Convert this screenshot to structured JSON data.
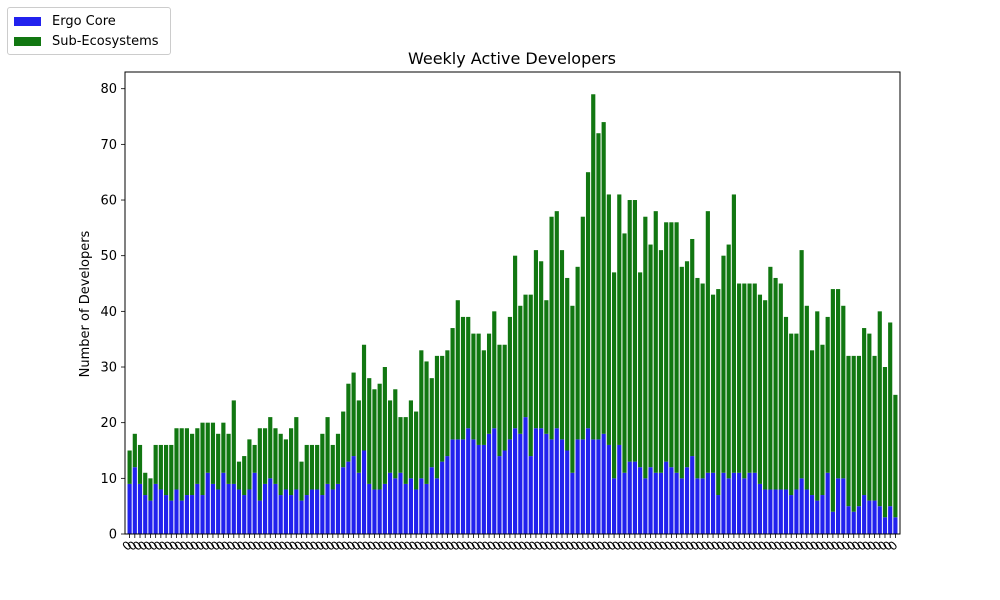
{
  "chart_data": {
    "type": "bar",
    "stacked": true,
    "title": "Weekly Active Developers",
    "xlabel": "",
    "ylabel": "Number of Developers",
    "ylim": [
      0,
      83
    ],
    "yticks": [
      0,
      10,
      20,
      30,
      40,
      50,
      60,
      70,
      80
    ],
    "xtick_label": "0",
    "legend_position": "top-left",
    "grid": false,
    "series": [
      {
        "name": "Ergo Core",
        "color": "#2222ee",
        "values": [
          9,
          12,
          9,
          7,
          6,
          9,
          8,
          7,
          6,
          8,
          6,
          7,
          7,
          9,
          7,
          11,
          9,
          8,
          11,
          9,
          9,
          8,
          7,
          8,
          11,
          6,
          9,
          10,
          9,
          7,
          8,
          7,
          8,
          6,
          7,
          8,
          8,
          7,
          9,
          8,
          9,
          12,
          13,
          14,
          11,
          15,
          9,
          8,
          8,
          9,
          11,
          10,
          11,
          9,
          10,
          8,
          10,
          9,
          12,
          10,
          13,
          14,
          17,
          17,
          17,
          19,
          17,
          16,
          16,
          18,
          19,
          14,
          15,
          17,
          19,
          18,
          21,
          14,
          19,
          19,
          18,
          17,
          19,
          17,
          15,
          11,
          17,
          17,
          19,
          17,
          17,
          18,
          16,
          10,
          16,
          11,
          13,
          13,
          12,
          10,
          12,
          11,
          11,
          13,
          12,
          11,
          10,
          12,
          14,
          10,
          10,
          11,
          11,
          7,
          11,
          10,
          11,
          11,
          10,
          11,
          11,
          9,
          8,
          8,
          8,
          8,
          8,
          7,
          8,
          10,
          8,
          7,
          6,
          7,
          11,
          4,
          10,
          10,
          5,
          4,
          5,
          7,
          6,
          6,
          5,
          3,
          5,
          3
        ]
      },
      {
        "name": "Sub-Ecosystems",
        "color": "#117711",
        "values": [
          6,
          6,
          7,
          4,
          4,
          7,
          8,
          9,
          10,
          11,
          13,
          12,
          11,
          10,
          13,
          9,
          11,
          10,
          9,
          9,
          15,
          5,
          7,
          9,
          5,
          13,
          10,
          11,
          10,
          11,
          9,
          12,
          13,
          7,
          9,
          8,
          8,
          11,
          12,
          8,
          9,
          10,
          14,
          15,
          13,
          19,
          19,
          18,
          19,
          21,
          13,
          16,
          10,
          12,
          14,
          14,
          23,
          22,
          16,
          22,
          19,
          19,
          20,
          25,
          22,
          20,
          19,
          20,
          17,
          18,
          21,
          20,
          19,
          22,
          31,
          23,
          22,
          29,
          32,
          30,
          24,
          40,
          39,
          34,
          31,
          30,
          31,
          40,
          46,
          62,
          55,
          56,
          45,
          37,
          45,
          43,
          47,
          47,
          35,
          47,
          40,
          47,
          40,
          43,
          44,
          45,
          38,
          37,
          39,
          36,
          35,
          47,
          32,
          37,
          39,
          42,
          50,
          34,
          35,
          34,
          34,
          34,
          34,
          40,
          38,
          37,
          31,
          29,
          28,
          41,
          33,
          26,
          34,
          27,
          28,
          40,
          34,
          31,
          27,
          28,
          27,
          30,
          30,
          26,
          35,
          27,
          33,
          22
        ]
      }
    ]
  }
}
